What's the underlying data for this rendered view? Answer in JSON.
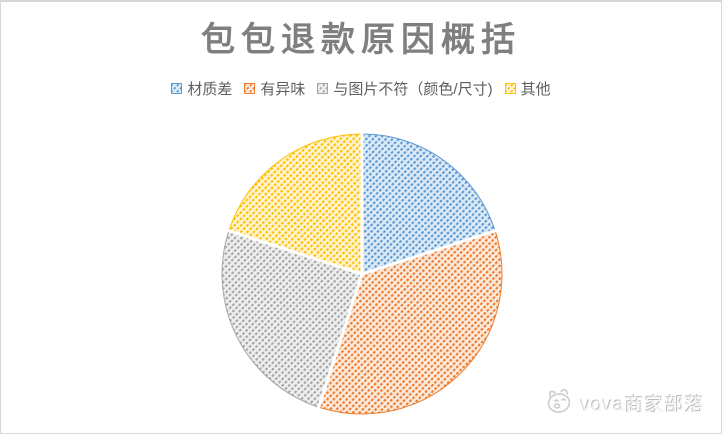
{
  "chart_data": {
    "type": "pie",
    "title": "包包退款原因概括",
    "categories": [
      "材质差",
      "有异味",
      "与图片不符（颜色/尺寸)",
      "其他"
    ],
    "values": [
      20,
      35,
      25,
      20
    ],
    "start_angle_deg": 0,
    "direction": "clockwise",
    "legend_position": "top",
    "fill_pattern": "dashed-upward-diagonal-hatch",
    "slice_separator_color": "#ffffff",
    "colors": [
      {
        "stripe": "#5B9BD5",
        "bg": "#DEEAF6"
      },
      {
        "stripe": "#ED7D31",
        "bg": "#FCEBDD"
      },
      {
        "stripe": "#A6A6A6",
        "bg": "#EFEFEF"
      },
      {
        "stripe": "#FFC000",
        "bg": "#FFF3D0"
      }
    ]
  },
  "title_color": "#7f7f7f",
  "watermark": {
    "text": "vova商家部落",
    "icon": "mascot-doodle-icon"
  }
}
